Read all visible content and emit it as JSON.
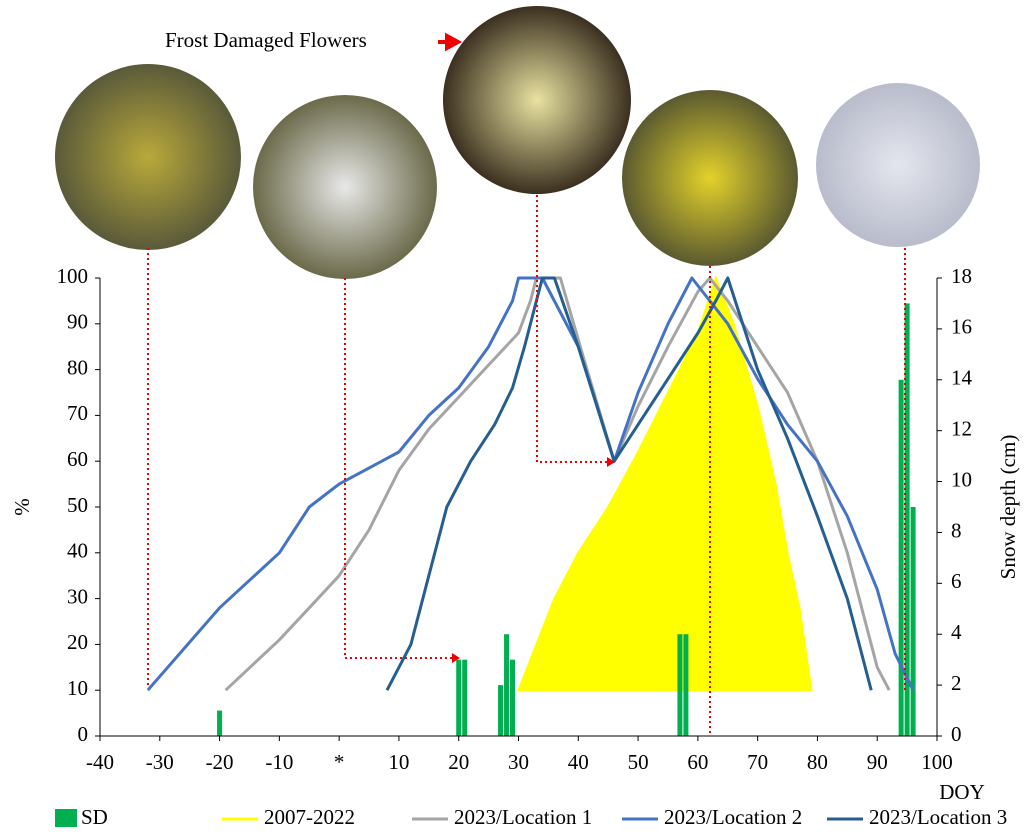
{
  "chart_data": {
    "type": "line",
    "annotation": "Frost Damaged Flowers",
    "x_label": "DOY",
    "y_label": "%",
    "y2_label": "Snow depth (cm)",
    "xlim": [
      -40,
      100
    ],
    "xticks": [
      -40,
      -30,
      -20,
      -10,
      {
        "value": 0,
        "label": "*"
      },
      10,
      20,
      30,
      40,
      50,
      60,
      70,
      80,
      90,
      100
    ],
    "ylim": [
      0,
      100
    ],
    "yticks": [
      0,
      10,
      20,
      30,
      40,
      50,
      60,
      70,
      80,
      90,
      100
    ],
    "y2lim": [
      0,
      18
    ],
    "y2ticks": [
      0,
      2,
      4,
      6,
      8,
      10,
      12,
      14,
      16,
      18
    ],
    "series": [
      {
        "name": "SD",
        "type": "bar",
        "axis": "y2",
        "color": "#00b050",
        "x": [
          -20,
          20,
          21,
          27,
          28,
          29,
          57,
          58,
          94,
          95,
          96
        ],
        "values": [
          1,
          3,
          3,
          2,
          4,
          3,
          4,
          4,
          14,
          17,
          9
        ]
      },
      {
        "name": "2007-2022",
        "type": "area",
        "color": "#ffff00",
        "x": [
          30,
          33,
          36,
          40,
          45,
          50,
          55,
          60,
          63,
          66,
          70,
          73,
          75,
          77,
          79
        ],
        "values": [
          10,
          20,
          30,
          40,
          50,
          62,
          75,
          88,
          100,
          90,
          72,
          55,
          40,
          28,
          10
        ]
      },
      {
        "name": "2023/Location 1",
        "type": "line",
        "color": "#a5a5a5",
        "x": [
          -19,
          -10,
          -5,
          0,
          5,
          10,
          15,
          20,
          25,
          30,
          32,
          33,
          37,
          41,
          46,
          50,
          55,
          60,
          62,
          65,
          70,
          75,
          80,
          85,
          90,
          92
        ],
        "values": [
          10,
          21,
          28,
          35,
          45,
          58,
          67,
          74,
          81,
          88,
          95,
          100,
          100,
          82,
          60,
          72,
          85,
          97,
          100,
          95,
          85,
          75,
          60,
          40,
          15,
          10
        ]
      },
      {
        "name": "2023/Location 2",
        "type": "line",
        "color": "#4472c4",
        "x": [
          -32,
          -20,
          -10,
          -5,
          0,
          10,
          15,
          20,
          25,
          29,
          30,
          34,
          40,
          46,
          50,
          55,
          59,
          65,
          70,
          75,
          80,
          85,
          90,
          93,
          96
        ],
        "values": [
          10,
          28,
          40,
          50,
          55,
          62,
          70,
          76,
          85,
          95,
          100,
          100,
          85,
          60,
          75,
          90,
          100,
          90,
          78,
          68,
          60,
          48,
          32,
          18,
          10
        ]
      },
      {
        "name": "2023/Location 3",
        "type": "line",
        "color": "#255e91",
        "x": [
          8,
          12,
          15,
          18,
          22,
          26,
          29,
          31,
          33,
          34,
          36,
          40,
          46,
          50,
          55,
          60,
          63,
          65,
          70,
          75,
          80,
          85,
          89
        ],
        "values": [
          10,
          20,
          35,
          50,
          60,
          68,
          76,
          85,
          95,
          100,
          100,
          85,
          60,
          68,
          78,
          88,
          95,
          100,
          80,
          65,
          48,
          30,
          10
        ]
      }
    ]
  }
}
